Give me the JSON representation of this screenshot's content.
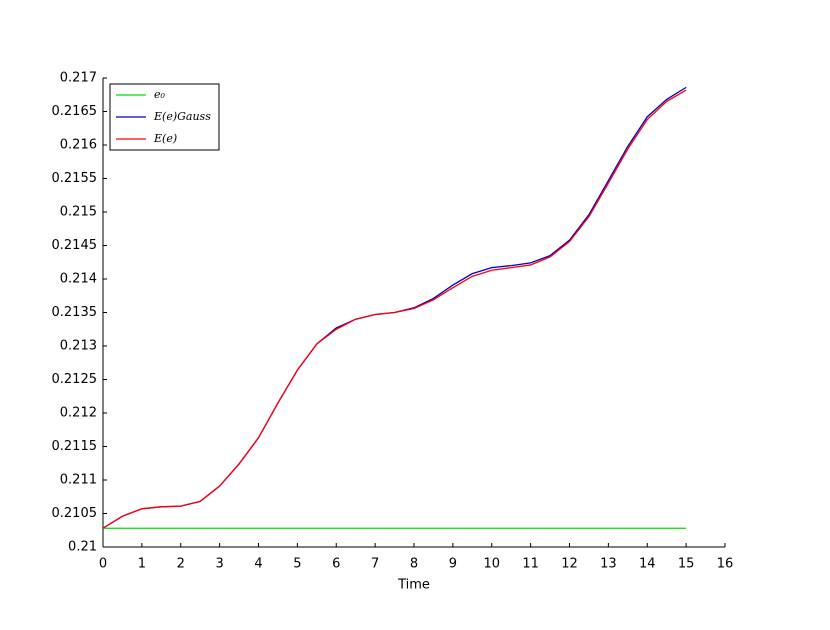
{
  "chart_data": {
    "type": "line",
    "xlabel": "Time",
    "x": [
      0,
      0.5,
      1,
      1.5,
      2,
      2.5,
      3,
      3.5,
      4,
      4.5,
      5,
      5.5,
      6,
      6.5,
      7,
      7.5,
      8,
      8.5,
      9,
      9.5,
      10,
      10.5,
      11,
      11.5,
      12,
      12.5,
      13,
      13.5,
      14,
      14.5,
      15
    ],
    "series": [
      {
        "name": "e₀",
        "color": "#00dd00",
        "values": [
          0.21028,
          0.21028,
          0.21028,
          0.21028,
          0.21028,
          0.21028,
          0.21028,
          0.21028,
          0.21028,
          0.21028,
          0.21028,
          0.21028,
          0.21028,
          0.21028,
          0.21028,
          0.21028,
          0.21028,
          0.21028,
          0.21028,
          0.21028,
          0.21028,
          0.21028,
          0.21028,
          0.21028,
          0.21028,
          0.21028,
          0.21028,
          0.21028,
          0.21028,
          0.21028,
          0.21028
        ]
      },
      {
        "name": "E(e)Gauss",
        "color": "#0000cc",
        "values": [
          0.21028,
          0.21046,
          0.21057,
          0.2106,
          0.21061,
          0.21068,
          0.21091,
          0.21124,
          0.21163,
          0.21215,
          0.21264,
          0.21303,
          0.21327,
          0.2134,
          0.21347,
          0.2135,
          0.21357,
          0.21371,
          0.21391,
          0.21408,
          0.21417,
          0.2142,
          0.21424,
          0.21435,
          0.21458,
          0.21496,
          0.21547,
          0.21598,
          0.21642,
          0.21668,
          0.21686
        ]
      },
      {
        "name": "E(e)",
        "color": "#ff0000",
        "values": [
          0.21028,
          0.21046,
          0.21057,
          0.2106,
          0.21061,
          0.21068,
          0.21091,
          0.21124,
          0.21163,
          0.21215,
          0.21264,
          0.21303,
          0.21325,
          0.2134,
          0.21347,
          0.2135,
          0.21356,
          0.21369,
          0.21387,
          0.21404,
          0.21413,
          0.21417,
          0.21421,
          0.21433,
          0.21456,
          0.21493,
          0.21543,
          0.21594,
          0.21638,
          0.21665,
          0.21682
        ]
      }
    ],
    "xlim": [
      0,
      16
    ],
    "xticks": [
      0,
      1,
      2,
      3,
      4,
      5,
      6,
      7,
      8,
      9,
      10,
      11,
      12,
      13,
      14,
      15,
      16
    ],
    "ylim": [
      0.21,
      0.217
    ],
    "yticks": [
      0.21,
      0.2105,
      0.211,
      0.2115,
      0.212,
      0.2125,
      0.213,
      0.2135,
      0.214,
      0.2145,
      0.215,
      0.2155,
      0.216,
      0.2165,
      0.217
    ],
    "legend": "upper-left"
  }
}
